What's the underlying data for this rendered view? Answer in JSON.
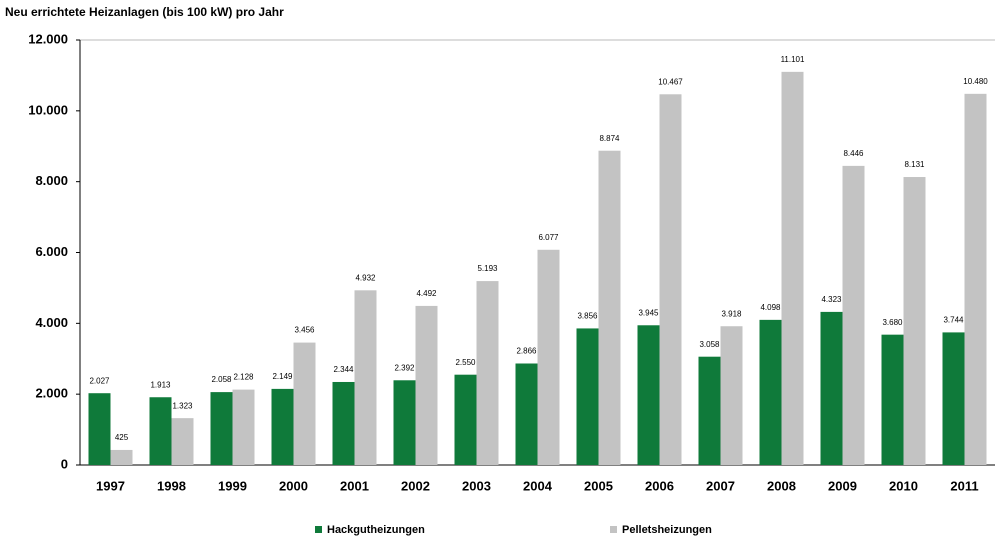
{
  "chart_data": {
    "type": "bar",
    "title": "Neu errichtete Heizanlagen (bis 100 kW) pro Jahr",
    "categories": [
      "1997",
      "1998",
      "1999",
      "2000",
      "2001",
      "2002",
      "2003",
      "2004",
      "2005",
      "2006",
      "2007",
      "2008",
      "2009",
      "2010",
      "2011"
    ],
    "series": [
      {
        "name": "Hackgutheizungen",
        "color": "#0f7a3a",
        "values": [
          2027,
          1913,
          2058,
          2149,
          2344,
          2392,
          2550,
          2866,
          3856,
          3945,
          3058,
          4098,
          4323,
          3680,
          3744
        ],
        "value_labels": [
          "2.027",
          "1.913",
          "2.058",
          "2.149",
          "2.344",
          "2.392",
          "2.550",
          "2.866",
          "3.856",
          "3.945",
          "3.058",
          "4.098",
          "4.323",
          "3.680",
          "3.744"
        ]
      },
      {
        "name": "Pelletsheizungen",
        "color": "#c3c3c3",
        "values": [
          425,
          1323,
          2128,
          3456,
          4932,
          4492,
          5193,
          6077,
          8874,
          10467,
          3918,
          11101,
          8446,
          8131,
          10480
        ],
        "value_labels": [
          "425",
          "1.323",
          "2.128",
          "3.456",
          "4.932",
          "4.492",
          "5.193",
          "6.077",
          "8.874",
          "10.467",
          "3.918",
          "11.101",
          "8.446",
          "8.131",
          "10.480"
        ]
      }
    ],
    "ylim": [
      0,
      12000
    ],
    "yticks": [
      0,
      {
        "value": 2000,
        "label": "2.000"
      },
      {
        "value": 4000,
        "label": "4.000"
      },
      {
        "value": 6000,
        "label": "6.000"
      },
      {
        "value": 8000,
        "label": "8.000"
      },
      {
        "value": 10000,
        "label": "10.000"
      },
      {
        "value": 12000,
        "label": "12.000"
      }
    ],
    "legend": "bottom"
  }
}
